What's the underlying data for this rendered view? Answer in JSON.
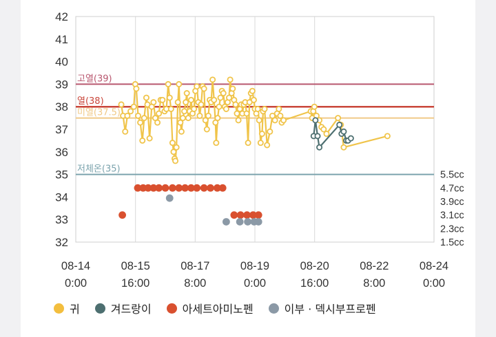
{
  "colors": {
    "ear": "#f3be3e",
    "ear_line": "#f0c44a",
    "forehead": "#4d6f70",
    "acetaminophen": "#d9502f",
    "ibuprofen": "#8b99a6",
    "high_fever_line": "#b8566e",
    "fever_line": "#c9463a",
    "mild_fever_line": "#f0c987",
    "hypothermia_line": "#7ba3ad"
  },
  "chart_data": {
    "type": "line",
    "title": "",
    "y_axis": {
      "min": 32,
      "max": 42,
      "ticks": [
        32,
        33,
        34,
        35,
        36,
        37,
        38,
        39,
        40,
        41,
        42
      ]
    },
    "x_axis": {
      "start": "08-14 0:00",
      "end": "08-24 0:00",
      "tick_labels": [
        {
          "line1": "08-14",
          "line2": "0:00",
          "day": 0.0
        },
        {
          "line1": "08-15",
          "line2": "16:00",
          "day": 1.667
        },
        {
          "line1": "08-17",
          "line2": "8:00",
          "day": 3.333
        },
        {
          "line1": "08-19",
          "line2": "0:00",
          "day": 5.0
        },
        {
          "line1": "08-20",
          "line2": "16:00",
          "day": 6.667
        },
        {
          "line1": "08-22",
          "line2": "8:00",
          "day": 8.333
        },
        {
          "line1": "08-24",
          "line2": "0:00",
          "day": 10.0
        }
      ],
      "grid_days": [
        1.667,
        3.333,
        5.0,
        6.667
      ]
    },
    "right_axis": {
      "labels": [
        "5.5cc",
        "4.7cc",
        "3.9cc",
        "3.1cc",
        "2.3cc",
        "1.5cc"
      ],
      "values": [
        5.5,
        4.7,
        3.9,
        3.1,
        2.3,
        1.5
      ],
      "min": 1.5,
      "max": 5.5
    },
    "reference_lines": [
      {
        "label": "고열(39)",
        "value": 39,
        "color_key": "high_fever_line"
      },
      {
        "label": "열(38)",
        "value": 38,
        "color_key": "fever_line"
      },
      {
        "label": "미열(37.5)",
        "value": 37.5,
        "color_key": "mild_fever_line"
      },
      {
        "label": "저체온(35)",
        "value": 35,
        "color_key": "hypothermia_line"
      }
    ],
    "series": [
      {
        "name": "귀",
        "type": "line",
        "color_key": "ear",
        "points": [
          [
            1.27,
            38.1
          ],
          [
            1.32,
            37.6
          ],
          [
            1.38,
            36.9
          ],
          [
            1.44,
            37.6
          ],
          [
            1.53,
            37.8
          ],
          [
            1.62,
            38.0
          ],
          [
            1.66,
            39.0
          ],
          [
            1.69,
            38.8
          ],
          [
            1.74,
            37.6
          ],
          [
            1.8,
            37.3
          ],
          [
            1.86,
            36.5
          ],
          [
            1.91,
            37.5
          ],
          [
            1.97,
            38.4
          ],
          [
            2.0,
            38.1
          ],
          [
            2.06,
            36.6
          ],
          [
            2.12,
            38.0
          ],
          [
            2.17,
            38.2
          ],
          [
            2.22,
            37.5
          ],
          [
            2.28,
            37.3
          ],
          [
            2.32,
            37.7
          ],
          [
            2.37,
            38.3
          ],
          [
            2.42,
            38.3
          ],
          [
            2.48,
            37.8
          ],
          [
            2.53,
            37.9
          ],
          [
            2.58,
            39.0
          ],
          [
            2.62,
            38.4
          ],
          [
            2.66,
            37.9
          ],
          [
            2.7,
            36.4
          ],
          [
            2.73,
            36.0
          ],
          [
            2.76,
            35.7
          ],
          [
            2.78,
            35.6
          ],
          [
            2.81,
            36.2
          ],
          [
            2.85,
            38.2
          ],
          [
            2.88,
            39.0
          ],
          [
            2.92,
            37.3
          ],
          [
            2.95,
            36.9
          ],
          [
            2.99,
            37.5
          ],
          [
            3.03,
            37.8
          ],
          [
            3.07,
            38.2
          ],
          [
            3.1,
            38.6
          ],
          [
            3.14,
            37.5
          ],
          [
            3.18,
            37.8
          ],
          [
            3.22,
            38.3
          ],
          [
            3.26,
            37.7
          ],
          [
            3.3,
            37.9
          ],
          [
            3.34,
            38.7
          ],
          [
            3.38,
            38.9
          ],
          [
            3.42,
            38.2
          ],
          [
            3.46,
            37.6
          ],
          [
            3.5,
            38.1
          ],
          [
            3.54,
            38.9
          ],
          [
            3.58,
            38.8
          ],
          [
            3.62,
            37.4
          ],
          [
            3.66,
            37.0
          ],
          [
            3.7,
            37.6
          ],
          [
            3.74,
            38.3
          ],
          [
            3.78,
            38.2
          ],
          [
            3.82,
            39.2
          ],
          [
            3.86,
            38.3
          ],
          [
            3.9,
            37.3
          ],
          [
            3.92,
            36.4
          ],
          [
            3.96,
            37.5
          ],
          [
            4.0,
            38.0
          ],
          [
            4.04,
            38.4
          ],
          [
            4.08,
            38.7
          ],
          [
            4.12,
            38.6
          ],
          [
            4.16,
            38.0
          ],
          [
            4.2,
            37.9
          ],
          [
            4.24,
            38.2
          ],
          [
            4.28,
            38.4
          ],
          [
            4.31,
            39.2
          ],
          [
            4.35,
            38.6
          ],
          [
            4.38,
            38.8
          ],
          [
            4.42,
            38.3
          ],
          [
            4.46,
            38.1
          ],
          [
            4.5,
            37.7
          ],
          [
            4.54,
            37.4
          ],
          [
            4.58,
            37.9
          ],
          [
            4.62,
            38.1
          ],
          [
            4.65,
            37.7
          ],
          [
            4.69,
            38.1
          ],
          [
            4.73,
            38.2
          ],
          [
            4.77,
            37.7
          ],
          [
            4.81,
            36.4
          ],
          [
            4.85,
            38.2
          ],
          [
            4.89,
            38.6
          ],
          [
            4.93,
            38.7
          ],
          [
            4.97,
            38.3
          ],
          [
            5.0,
            37.9
          ],
          [
            5.04,
            37.7
          ],
          [
            5.08,
            37.9
          ],
          [
            5.12,
            37.4
          ],
          [
            5.16,
            36.4
          ],
          [
            5.2,
            36.8
          ],
          [
            5.23,
            37.8
          ],
          [
            5.27,
            37.9
          ],
          [
            5.34,
            36.3
          ],
          [
            5.42,
            36.9
          ],
          [
            5.49,
            37.6
          ],
          [
            5.56,
            37.4
          ],
          [
            5.62,
            37.7
          ],
          [
            5.67,
            37.9
          ],
          [
            5.71,
            37.6
          ],
          [
            5.75,
            37.3
          ],
          [
            5.8,
            37.4
          ],
          [
            6.56,
            37.8
          ],
          [
            6.6,
            37.5
          ],
          [
            6.63,
            37.8
          ],
          [
            6.66,
            38.0
          ],
          [
            6.72,
            37.6
          ],
          [
            6.8,
            37.4
          ],
          [
            6.86,
            37.1
          ],
          [
            6.92,
            37.0
          ],
          [
            7.0,
            36.8
          ],
          [
            7.32,
            37.5
          ],
          [
            7.4,
            37.2
          ],
          [
            7.48,
            36.2
          ],
          [
            8.7,
            36.7
          ]
        ]
      },
      {
        "name": "겨드랑이",
        "type": "line",
        "color_key": "forehead",
        "points": [
          [
            6.64,
            36.7
          ],
          [
            6.69,
            37.4
          ],
          [
            6.75,
            36.7
          ],
          [
            6.8,
            36.2
          ],
          [
            7.36,
            37.2
          ],
          [
            7.42,
            36.8
          ],
          [
            7.48,
            36.9
          ],
          [
            7.55,
            36.5
          ],
          [
            7.6,
            36.5
          ],
          [
            7.68,
            36.6
          ]
        ]
      },
      {
        "name": "아세트아미노펜",
        "type": "scatter",
        "color_key": "acetaminophen",
        "points": [
          [
            1.3,
            3.1
          ],
          [
            1.73,
            4.7
          ],
          [
            1.88,
            4.7
          ],
          [
            2.02,
            4.7
          ],
          [
            2.17,
            4.7
          ],
          [
            2.32,
            4.7
          ],
          [
            2.5,
            4.7
          ],
          [
            2.7,
            4.7
          ],
          [
            2.88,
            4.7
          ],
          [
            3.05,
            4.7
          ],
          [
            3.22,
            4.7
          ],
          [
            3.38,
            4.7
          ],
          [
            3.58,
            4.7
          ],
          [
            3.76,
            4.7
          ],
          [
            3.95,
            4.7
          ],
          [
            4.1,
            4.7
          ],
          [
            4.42,
            3.1
          ],
          [
            4.6,
            3.1
          ],
          [
            4.78,
            3.1
          ],
          [
            4.95,
            3.1
          ],
          [
            5.1,
            3.1
          ]
        ]
      },
      {
        "name": "이부 · 덱시부프로펜",
        "type": "scatter",
        "color_key": "ibuprofen",
        "points": [
          [
            2.62,
            4.1
          ],
          [
            4.2,
            2.7
          ],
          [
            4.58,
            2.7
          ],
          [
            4.8,
            2.7
          ],
          [
            4.98,
            2.7
          ],
          [
            5.1,
            2.7
          ]
        ]
      }
    ]
  },
  "legend": [
    {
      "label": "귀",
      "color_key": "ear"
    },
    {
      "label": "겨드랑이",
      "color_key": "forehead"
    },
    {
      "label": "아세트아미노펜",
      "color_key": "acetaminophen"
    },
    {
      "label": "이부 · 덱시부프로펜",
      "color_key": "ibuprofen"
    }
  ]
}
